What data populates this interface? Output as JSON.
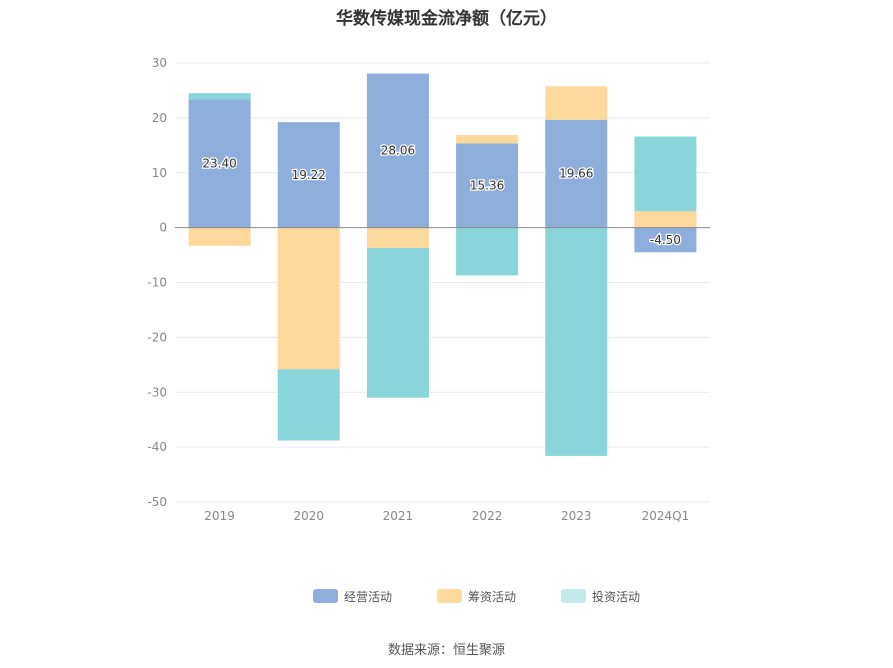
{
  "chart_data": {
    "type": "bar",
    "stacked": true,
    "title": "华数传媒现金流净额（亿元）",
    "categories": [
      "2019",
      "2020",
      "2021",
      "2022",
      "2023",
      "2024Q1"
    ],
    "series": [
      {
        "name": "经营活动",
        "color": "#8eaedb",
        "values": [
          23.4,
          19.22,
          28.06,
          15.36,
          19.66,
          -4.5
        ]
      },
      {
        "name": "筹资活动",
        "color": "#fed99b",
        "values": [
          -3.3,
          -25.8,
          -3.7,
          1.5,
          6.1,
          3.0
        ]
      },
      {
        "name": "投资活动",
        "color": "#88d6da",
        "values": [
          1.1,
          -13.0,
          -27.3,
          -8.7,
          -41.6,
          13.6
        ]
      }
    ],
    "data_labels": [
      "23.40",
      "19.22",
      "28.06",
      "15.36",
      "19.66",
      "-4.50"
    ],
    "ylim": [
      -50,
      30
    ],
    "yticks": [
      30,
      20,
      10,
      0,
      -10,
      -20,
      -30,
      -40,
      -50
    ],
    "grid": true,
    "legend_position": "bottom"
  },
  "legend": {
    "items": [
      {
        "label": "经营活动",
        "color": "#8eaedb"
      },
      {
        "label": "筹资活动",
        "color": "#fed99b"
      },
      {
        "label": "投资活动",
        "color": "#c2e9ec"
      }
    ]
  },
  "footer": {
    "source": "数据来源：恒生聚源"
  }
}
